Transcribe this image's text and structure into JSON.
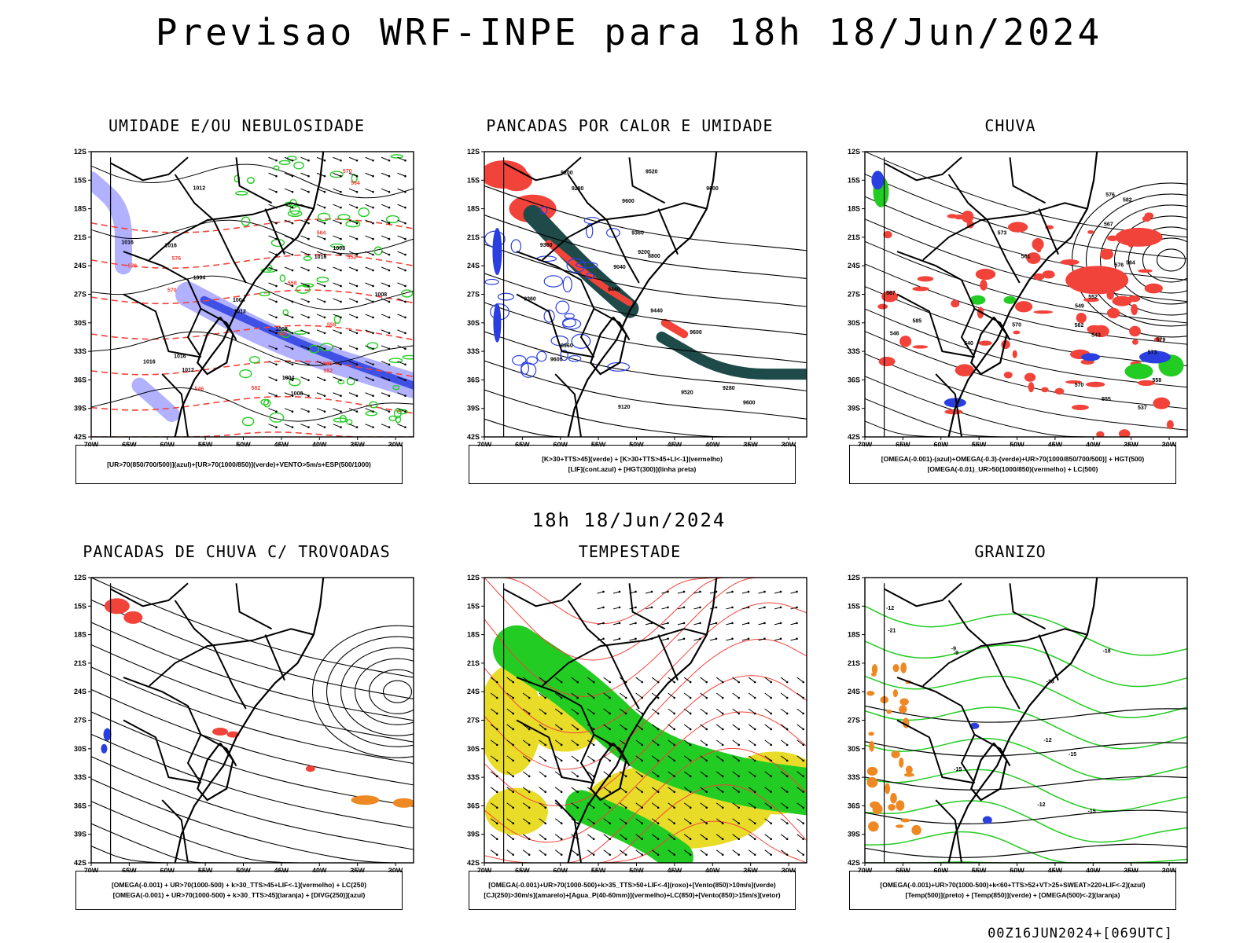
{
  "main_title": "Previsao WRF-INPE  para 18h 18/Jun/2024",
  "mid_title": "18h 18/Jun/2024",
  "footer": "00Z16JUN2024+[069UTC]",
  "colors": {
    "red": "#f2433a",
    "green": "#22cc22",
    "blue": "#2b3fe0",
    "lightblue": "#a8a8ff",
    "yellow": "#e8dc28",
    "teal": "#1f4a4a",
    "orange": "#ee8822"
  },
  "chart_data": [
    {
      "type": "heatmap",
      "title": "UMIDADE E/OU NEBULOSIDADE",
      "xlabel": "",
      "ylabel": "",
      "x_ticks": [
        "70W",
        "65W",
        "60W",
        "55W",
        "50W",
        "45W",
        "40W",
        "35W",
        "30W"
      ],
      "y_ticks": [
        "12S",
        "15S",
        "18S",
        "21S",
        "24S",
        "27S",
        "30S",
        "33S",
        "36S",
        "39S",
        "42S"
      ],
      "contour_labels": [
        "1008",
        "1012",
        "1016",
        "1016",
        "1008",
        "1004",
        "1008",
        "1004",
        "1012",
        "1012",
        "1016",
        "1016",
        "1004",
        "1008",
        "1016",
        "570",
        "576",
        "564",
        "558",
        "552",
        "546",
        "540",
        "546",
        "552",
        "558",
        "564",
        "570",
        "576",
        "582"
      ],
      "legend": [
        "[UR>70(850/700/500)](azul)+[UR>70(1000/850)](verde)+VENTO>5m/s+ESP(500/1000)"
      ]
    },
    {
      "type": "heatmap",
      "title": "PANCADAS POR CALOR E UMIDADE",
      "xlabel": "",
      "ylabel": "",
      "x_ticks": [
        "70W",
        "65W",
        "60W",
        "55W",
        "50W",
        "45W",
        "40W",
        "35W",
        "30W"
      ],
      "y_ticks": [
        "12S",
        "15S",
        "18S",
        "21S",
        "24S",
        "27S",
        "30S",
        "33S",
        "36S",
        "39S",
        "42S"
      ],
      "contour_labels": [
        "9600",
        "9520",
        "9440",
        "9360",
        "9280",
        "9200",
        "9120",
        "9040",
        "8960",
        "8800",
        "9600",
        "9600",
        "9600",
        "9600",
        "9520",
        "9440",
        "9360",
        "9200",
        "9280",
        "9360"
      ],
      "legend": [
        "[K>30+TTS>45](verde) + [K>30+TTS>45+LI<-1](vermelho)",
        "[LIF](cont.azul) + [HGT(300)](linha preta)"
      ]
    },
    {
      "type": "heatmap",
      "title": "CHUVA",
      "xlabel": "",
      "ylabel": "",
      "x_ticks": [
        "70W",
        "65W",
        "60W",
        "55W",
        "50W",
        "45W",
        "40W",
        "35W",
        "30W"
      ],
      "y_ticks": [
        "12S",
        "15S",
        "18S",
        "21S",
        "24S",
        "27S",
        "30S",
        "33S",
        "36S",
        "39S",
        "42S"
      ],
      "contour_labels": [
        "582",
        "579",
        "576",
        "573",
        "570",
        "567",
        "564",
        "561",
        "558",
        "555",
        "552",
        "549",
        "546",
        "543",
        "540",
        "537",
        "582",
        "585",
        "576",
        "573",
        "570",
        "567"
      ],
      "legend": [
        "[OMEGA(-0.001)-(azul)+OMEGA(-0.3)-(verde)+UR>70(1000/850/700/500)] + HGT(500)",
        "[OMEGA(-0.01)_UR>50(1000/850)(vermelho) + LC(500)"
      ]
    },
    {
      "type": "heatmap",
      "title": "PANCADAS DE CHUVA C/ TROVOADAS",
      "xlabel": "",
      "ylabel": "",
      "x_ticks": [
        "70W",
        "65W",
        "60W",
        "55W",
        "50W",
        "45W",
        "40W",
        "35W",
        "30W"
      ],
      "y_ticks": [
        "12S",
        "15S",
        "18S",
        "21S",
        "24S",
        "27S",
        "30S",
        "33S",
        "36S",
        "39S",
        "42S"
      ],
      "legend": [
        "[OMEGA(-0.001) + UR>70(1000-500) + k>30_TTS>45+LIF<-1](vermelho) + LC(250)",
        "[OMEGA(-0.001) + UR>70(1000-500) + k>30_TTS>45](laranja) + [DIVG(250)](azul)"
      ]
    },
    {
      "type": "heatmap",
      "title": "TEMPESTADE",
      "xlabel": "",
      "ylabel": "",
      "x_ticks": [
        "70W",
        "65W",
        "60W",
        "55W",
        "50W",
        "45W",
        "40W",
        "35W",
        "30W"
      ],
      "y_ticks": [
        "12S",
        "15S",
        "18S",
        "21S",
        "24S",
        "27S",
        "30S",
        "33S",
        "36S",
        "39S",
        "42S"
      ],
      "legend": [
        "[OMEGA(-0.001)+UR>70(1000-500)+k>35_TTS>50+LIF<-4](roxo)+[Vento(850)>10m/s](verde)",
        "[CJ(250)>30m/s](amarelo)+[Agua_P(40-60mm)](vermelho)+LC(850)+[Vento(850)>15m/s](vetor)"
      ]
    },
    {
      "type": "heatmap",
      "title": "GRANIZO",
      "xlabel": "",
      "ylabel": "",
      "x_ticks": [
        "70W",
        "65W",
        "60W",
        "55W",
        "50W",
        "45W",
        "40W",
        "35W",
        "30W"
      ],
      "y_ticks": [
        "12S",
        "15S",
        "18S",
        "21S",
        "24S",
        "27S",
        "30S",
        "33S",
        "36S",
        "39S",
        "42S"
      ],
      "contour_labels": [
        "-9",
        "-12",
        "-15",
        "-18",
        "-21",
        "-12",
        "-15",
        "-18",
        "-9",
        "-12",
        "-15"
      ],
      "legend": [
        "[OMEGA(-0.001)+UR>70(1000-500)+k<60+TTS>52+VT>25+SWEAT>220+LIF<-2](azul)",
        "[Temp(500)](preto) + [Temp(850)](verde) + [OMEGA(500)<-2](laranja)"
      ]
    }
  ]
}
